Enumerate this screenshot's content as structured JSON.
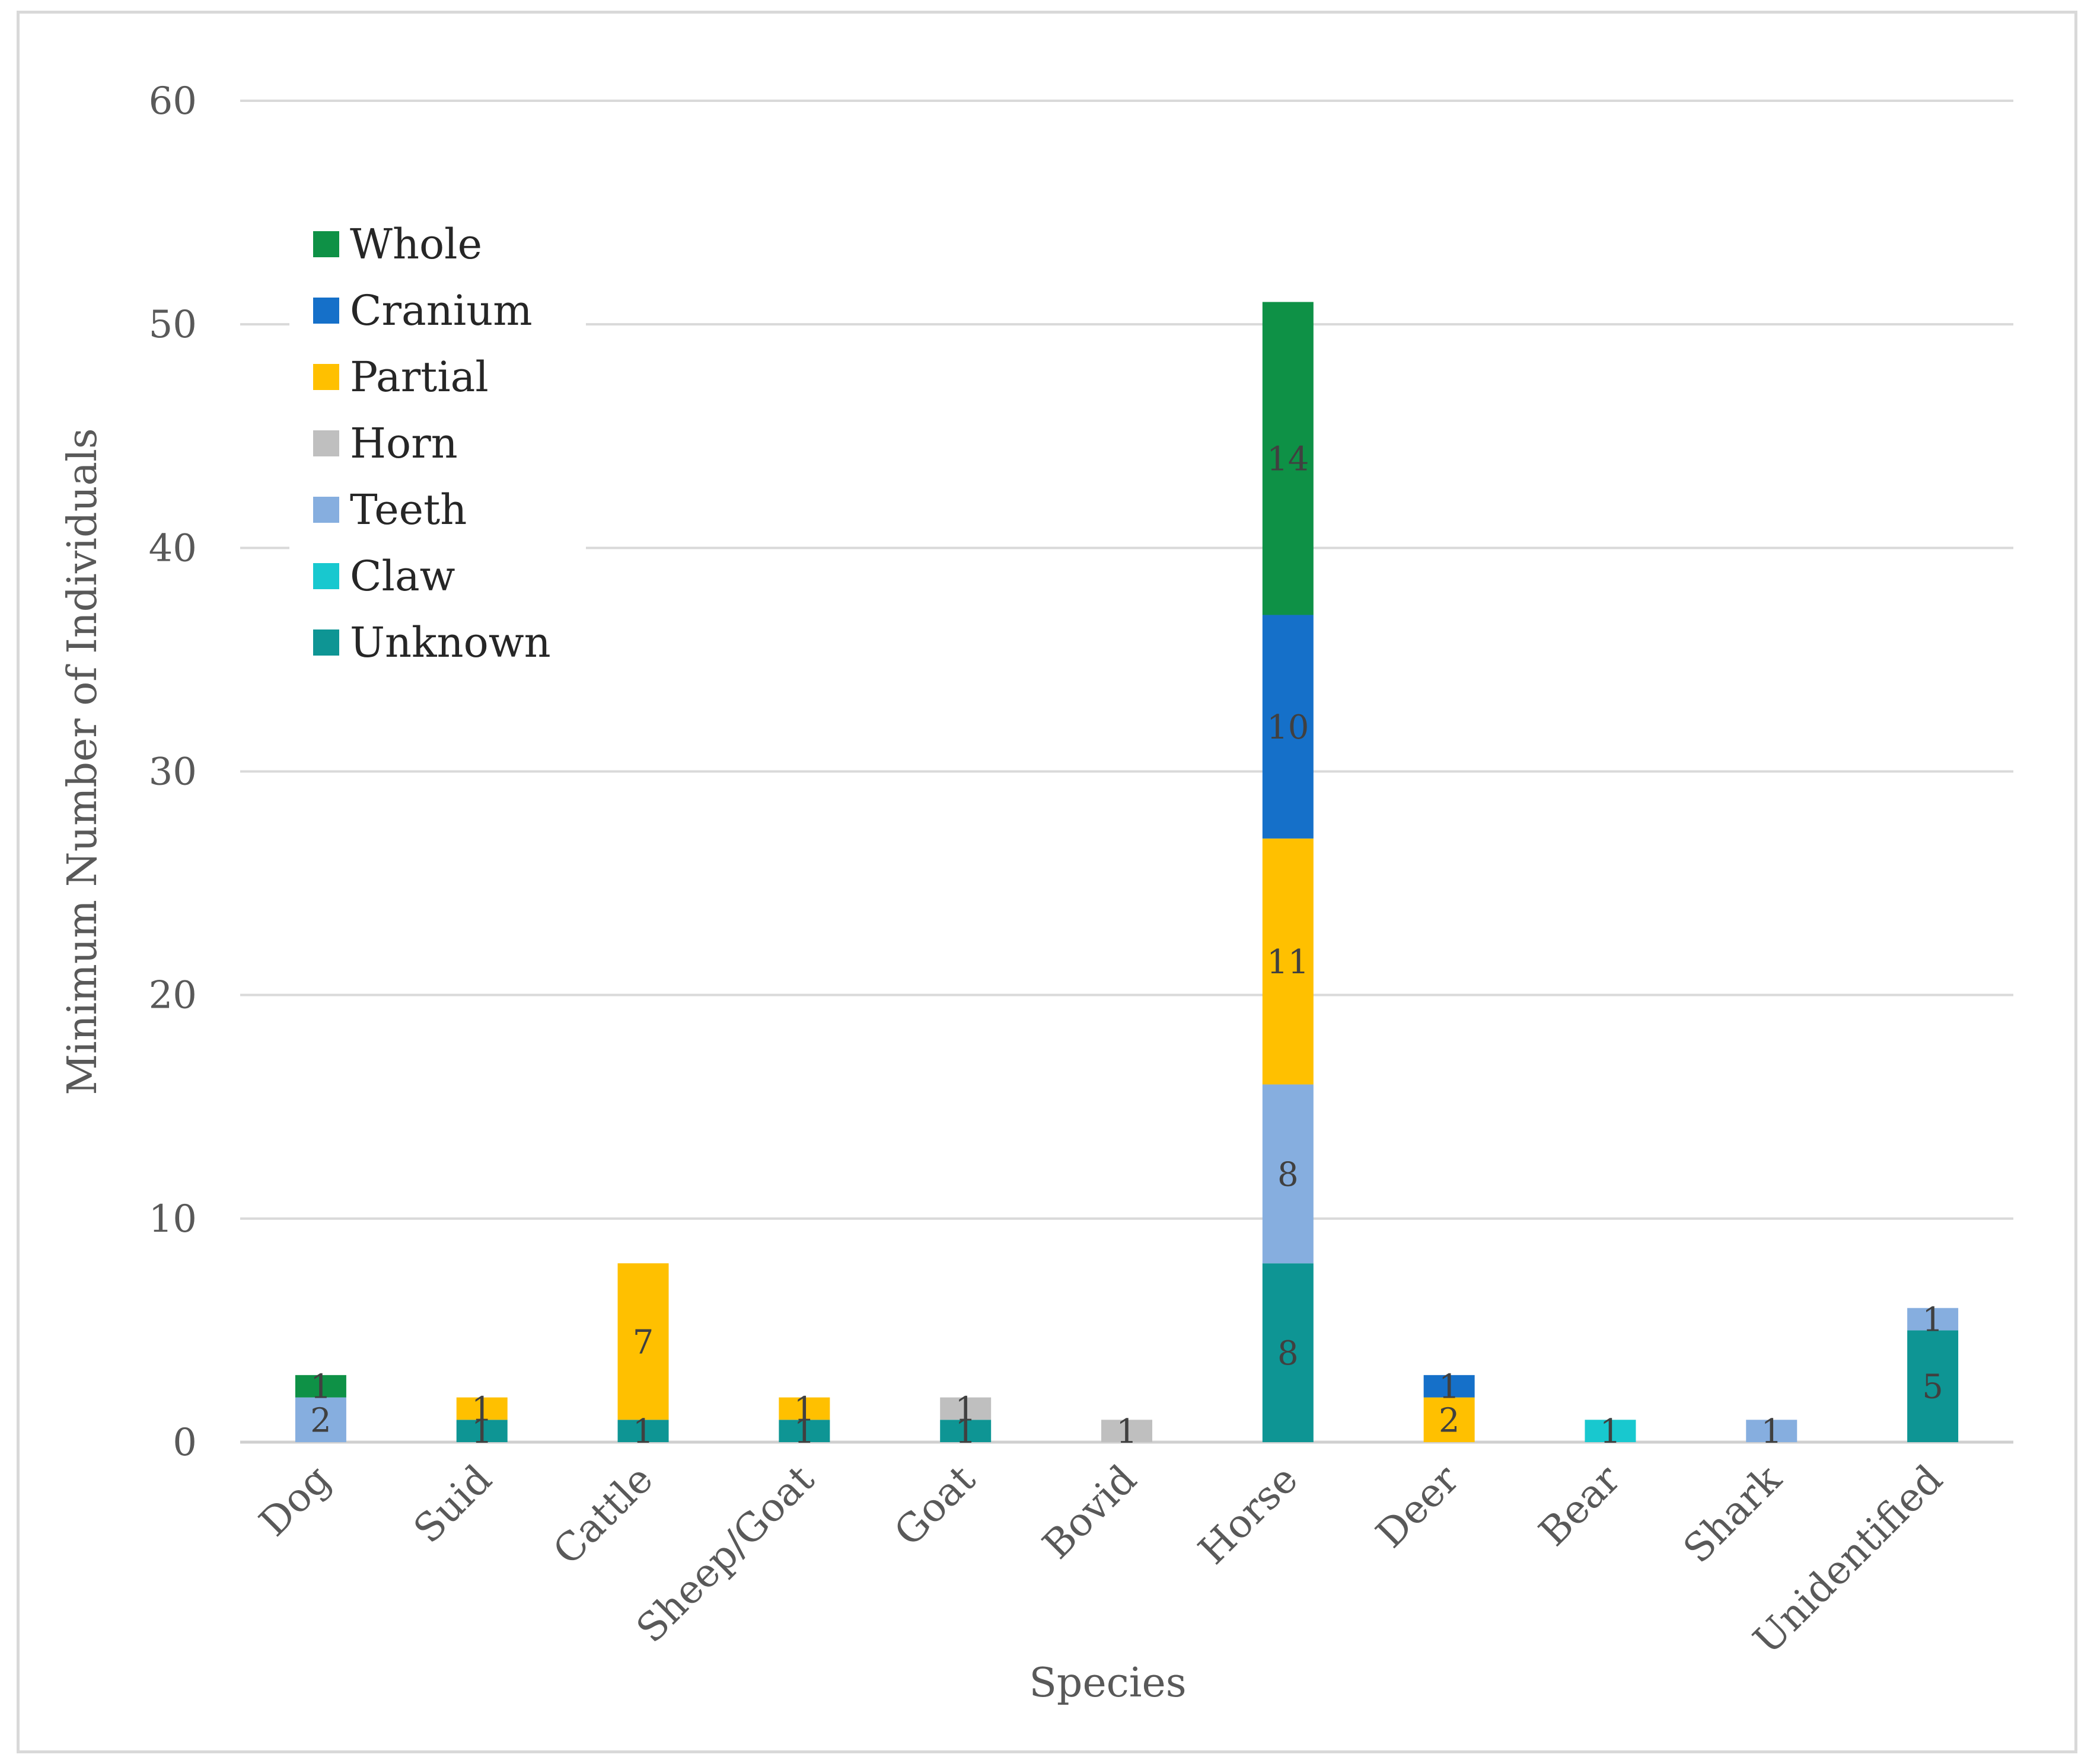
{
  "chart_data": {
    "type": "bar",
    "stacked": true,
    "title": "",
    "xlabel": "Species",
    "ylabel": "Minimum Number of Individuals",
    "ylim": [
      0,
      60
    ],
    "yticks": [
      0,
      10,
      20,
      30,
      40,
      50,
      60
    ],
    "grid": true,
    "legend_position": "top-left",
    "categories": [
      "Dog",
      "Suid",
      "Cattle",
      "Sheep/Goat",
      "Goat",
      "Bovid",
      "Horse",
      "Deer",
      "Bear",
      "Shark",
      "Unidentified"
    ],
    "series": [
      {
        "name": "Unknown",
        "color": "#0e9594",
        "values": [
          0,
          1,
          1,
          1,
          1,
          0,
          8,
          0,
          0,
          0,
          5
        ]
      },
      {
        "name": "Claw",
        "color": "#18c8cf",
        "values": [
          0,
          0,
          0,
          0,
          0,
          0,
          0,
          0,
          1,
          0,
          0
        ]
      },
      {
        "name": "Teeth",
        "color": "#86aedf",
        "values": [
          2,
          0,
          0,
          0,
          0,
          0,
          8,
          0,
          0,
          1,
          1
        ]
      },
      {
        "name": "Horn",
        "color": "#bfbfbf",
        "values": [
          0,
          0,
          0,
          0,
          1,
          1,
          0,
          0,
          0,
          0,
          0
        ]
      },
      {
        "name": "Partial",
        "color": "#ffc000",
        "values": [
          0,
          1,
          7,
          1,
          0,
          0,
          11,
          2,
          0,
          0,
          0
        ]
      },
      {
        "name": "Cranium",
        "color": "#1570c9",
        "values": [
          0,
          0,
          0,
          0,
          0,
          0,
          10,
          1,
          0,
          0,
          0
        ]
      },
      {
        "name": "Whole",
        "color": "#0e9146",
        "values": [
          1,
          0,
          0,
          0,
          0,
          0,
          14,
          0,
          0,
          0,
          0
        ]
      }
    ],
    "legend_order": [
      "Whole",
      "Cranium",
      "Partial",
      "Horn",
      "Teeth",
      "Claw",
      "Unknown"
    ]
  }
}
